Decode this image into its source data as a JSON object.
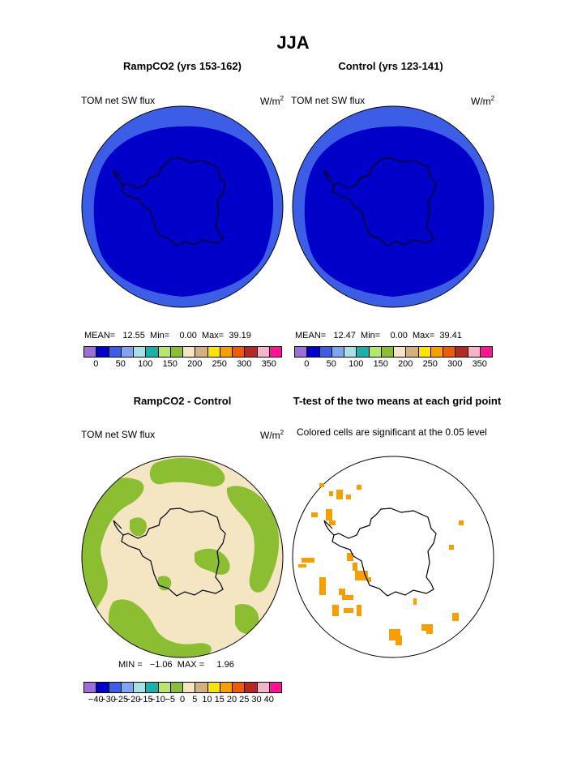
{
  "figure_title": "JJA",
  "panels": {
    "top_left": {
      "title": "RampCO2 (yrs 153-162)",
      "left_label": "TOM net SW flux",
      "units": "W/m",
      "units_sup": "2",
      "stats": {
        "mean_label": "MEAN=",
        "mean": "12.55",
        "min_label": "Min=",
        "min": "0.00",
        "max_label": "Max=",
        "max": "39.19"
      }
    },
    "top_right": {
      "title": "Control (yrs 123-141)",
      "left_label": "TOM net SW flux",
      "units": "W/m",
      "units_sup": "2",
      "stats": {
        "mean_label": "MEAN=",
        "mean": "12.47",
        "min_label": "Min=",
        "min": "0.00",
        "max_label": "Max=",
        "max": "39.41"
      }
    },
    "bottom_left": {
      "title": "RampCO2 - Control",
      "left_label": "TOM net SW flux",
      "units": "W/m",
      "units_sup": "2",
      "stats": {
        "min_label": "MIN =",
        "min": "−1.06",
        "max_label": "MAX =",
        "max": "1.96"
      }
    },
    "bottom_right": {
      "title": "T-test of the two means at each grid point",
      "note": "Colored cells are significant at the 0.05 level"
    }
  },
  "colors": {
    "field_inner": "#0000c8",
    "field_outer": "#3c5ee6",
    "diff_tan": "#f5e6c3",
    "diff_green": "#8cbe32",
    "ttest": "#f5a000",
    "coast": "#000000"
  },
  "colorbars": {
    "abs_colors": [
      "#9b6fd6",
      "#0000c8",
      "#3c5ee6",
      "#7ea6f0",
      "#a8e0e8",
      "#1ab2a8",
      "#b6e670",
      "#8cbe32",
      "#f5e6c3",
      "#d4b07c",
      "#fde400",
      "#f5a000",
      "#f05a00",
      "#b42828",
      "#f5b4c8",
      "#ff1493"
    ],
    "abs_ticks": [
      "0",
      "50",
      "100",
      "150",
      "200",
      "250",
      "300",
      "350"
    ],
    "diff_colors": [
      "#9b6fd6",
      "#0000c8",
      "#3c5ee6",
      "#7ea6f0",
      "#a8e0e8",
      "#1ab2a8",
      "#b6e670",
      "#8cbe32",
      "#f5e6c3",
      "#d4b07c",
      "#fde400",
      "#f5a000",
      "#f05a00",
      "#b42828",
      "#f5b4c8",
      "#ff1493"
    ],
    "diff_ticks": [
      "−40",
      "−30",
      "−25",
      "−20",
      "−15",
      "−10",
      "−5",
      "0",
      "5",
      "10",
      "15",
      "20",
      "25",
      "30",
      "40"
    ]
  },
  "chart_data": [
    {
      "type": "heatmap",
      "title": "RampCO2 (yrs 153-162)",
      "field": "TOM net SW flux",
      "units": "W/m2",
      "projection": "south polar stereographic",
      "mean": 12.55,
      "min": 0.0,
      "max": 39.19,
      "levels": [
        0,
        50,
        100,
        150,
        200,
        250,
        300,
        350
      ]
    },
    {
      "type": "heatmap",
      "title": "Control (yrs 123-141)",
      "field": "TOM net SW flux",
      "units": "W/m2",
      "projection": "south polar stereographic",
      "mean": 12.47,
      "min": 0.0,
      "max": 39.41,
      "levels": [
        0,
        50,
        100,
        150,
        200,
        250,
        300,
        350
      ]
    },
    {
      "type": "heatmap",
      "title": "RampCO2 - Control",
      "field": "TOM net SW flux",
      "units": "W/m2",
      "projection": "south polar stereographic",
      "min": -1.06,
      "max": 1.96,
      "levels": [
        -40,
        -30,
        -25,
        -20,
        -15,
        -10,
        -5,
        0,
        5,
        10,
        15,
        20,
        25,
        30,
        40
      ]
    },
    {
      "type": "heatmap",
      "title": "T-test of the two means at each grid point",
      "projection": "south polar stereographic",
      "significance_level": 0.05
    }
  ]
}
